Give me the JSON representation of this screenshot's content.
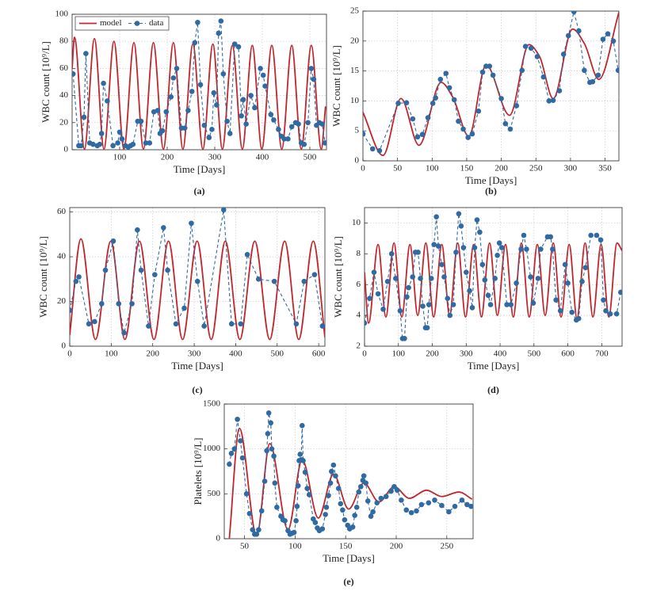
{
  "chart_data": [
    {
      "type": "line",
      "panel": "(a)",
      "xlabel": "Time [Days]",
      "ylabel": "WBC count [10⁹/L]",
      "grid": true,
      "legend": "upper left",
      "xlim": [
        0,
        535
      ],
      "xticks": [
        100,
        200,
        300,
        400,
        500
      ],
      "ylim": [
        0,
        100
      ],
      "yticks": [
        0,
        20,
        40,
        60,
        80,
        100
      ],
      "series": [
        {
          "name": "model",
          "color": "#c0272d",
          "linestyle": "solid",
          "x": [
            0,
            5,
            26,
            47,
            67,
            88,
            109,
            130,
            150,
            171,
            192,
            213,
            233,
            254,
            275,
            296,
            316,
            337,
            358,
            379,
            399,
            420,
            441,
            462,
            482,
            503,
            524,
            533
          ],
          "values": [
            60,
            83,
            0.5,
            82,
            0.5,
            80,
            0.5,
            79,
            0.5,
            79,
            0.5,
            79,
            0.5,
            78,
            0.5,
            78,
            0.5,
            77,
            0.5,
            77,
            0.5,
            77,
            0.5,
            77,
            0.5,
            77,
            0.5,
            32
          ]
        },
        {
          "name": "data",
          "color": "#2f6aa3",
          "linestyle": "dashed",
          "marker": "circle",
          "x": [
            2,
            14,
            19,
            25,
            29,
            37,
            44,
            53,
            58,
            62,
            66,
            74,
            86,
            96,
            100,
            105,
            112,
            118,
            123,
            128,
            138,
            145,
            155,
            163,
            172,
            180,
            185,
            190,
            198,
            208,
            213,
            220,
            230,
            237,
            244,
            252,
            258,
            264,
            270,
            278,
            288,
            294,
            298,
            304,
            308,
            313,
            318,
            326,
            332,
            342,
            350,
            356,
            360,
            366,
            376,
            384,
            396,
            402,
            406,
            418,
            424,
            434,
            440,
            446,
            454,
            462,
            470,
            476,
            482,
            488,
            496,
            503,
            508,
            514,
            520,
            526,
            532
          ],
          "values": [
            56,
            3,
            3,
            24,
            71,
            5,
            4,
            3,
            4,
            12,
            49,
            36,
            3,
            5,
            13,
            8,
            3,
            2,
            3,
            4,
            21,
            21,
            5,
            5,
            28,
            29,
            12,
            14,
            28,
            39,
            53,
            60,
            16,
            16,
            29,
            43,
            79,
            94,
            48,
            18,
            9,
            15,
            42,
            33,
            86,
            95,
            56,
            21,
            12,
            78,
            76,
            25,
            37,
            19,
            40,
            31,
            60,
            55,
            47,
            26,
            22,
            15,
            10,
            8,
            8,
            17,
            20,
            19,
            5,
            4,
            20,
            60,
            52,
            18,
            20,
            19,
            5
          ]
        }
      ]
    },
    {
      "type": "line",
      "panel": "(b)",
      "xlabel": "Time [Days]",
      "ylabel": "WBC count [10⁹/L]",
      "grid": true,
      "xlim": [
        0,
        370
      ],
      "xticks": [
        0,
        50,
        100,
        150,
        200,
        250,
        300,
        350
      ],
      "ylim": [
        0,
        25
      ],
      "yticks": [
        0,
        5,
        10,
        15,
        20,
        25
      ],
      "series": [
        {
          "color": "#c0272d",
          "linestyle": "solid",
          "x": [
            0,
            29,
            55,
            81,
            113,
            130,
            153,
            178,
            212,
            240,
            255,
            275,
            303,
            320,
            341,
            370
          ],
          "values": [
            8.1,
            0.9,
            10.4,
            2.6,
            13.1,
            10.6,
            4.1,
            16,
            7.6,
            19.4,
            17.5,
            10.4,
            22,
            19.6,
            13.6,
            24.8
          ]
        },
        {
          "color": "#2f6aa3",
          "linestyle": "dashed",
          "marker": "circle",
          "x": [
            0,
            14,
            24,
            51,
            63,
            72,
            79,
            86,
            94,
            101,
            105,
            112,
            120,
            125,
            132,
            138,
            145,
            152,
            158,
            167,
            173,
            178,
            183,
            188,
            200,
            206,
            213,
            222,
            230,
            235,
            243,
            252,
            261,
            269,
            275,
            284,
            290,
            297,
            305,
            312,
            320,
            328,
            332,
            340,
            347,
            354,
            362,
            369
          ],
          "values": [
            4.5,
            2,
            1.7,
            9.6,
            9.7,
            7,
            4,
            4.4,
            7.2,
            9.6,
            10.5,
            13.6,
            14.6,
            12.2,
            10.2,
            6.6,
            5.3,
            3.9,
            4.5,
            8.3,
            14.8,
            15.8,
            15.8,
            14.3,
            10.4,
            6.2,
            5.3,
            9.2,
            15.1,
            19.1,
            18.8,
            17.4,
            14,
            10,
            10.1,
            11.7,
            17.8,
            20.9,
            24.9,
            21.7,
            15.1,
            13.1,
            13.2,
            14.3,
            20.3,
            21.2,
            20,
            15.1
          ]
        }
      ]
    },
    {
      "type": "line",
      "panel": "(c)",
      "xlabel": "Time [Days]",
      "ylabel": "WBC count [10⁹/L]",
      "grid": true,
      "xlim": [
        0,
        615
      ],
      "xticks": [
        0,
        100,
        200,
        300,
        400,
        500,
        600
      ],
      "ylim": [
        0,
        62
      ],
      "yticks": [
        0,
        20,
        40,
        60
      ],
      "series": [
        {
          "color": "#c0272d",
          "linestyle": "solid",
          "x": [
            0,
            27,
            62,
            99,
            133,
            168,
            203,
            238,
            272,
            307,
            341,
            375,
            410,
            446,
            482,
            518,
            552,
            587,
            615
          ],
          "values": [
            5,
            48,
            3,
            47,
            3,
            47,
            3,
            47,
            3,
            47,
            3,
            47,
            3,
            47,
            3,
            47,
            3,
            47,
            4
          ]
        },
        {
          "color": "#2f6aa3",
          "linestyle": "dashed",
          "marker": "circle",
          "x": [
            0,
            15,
            22,
            46,
            60,
            77,
            86,
            105,
            118,
            131,
            150,
            163,
            172,
            190,
            205,
            226,
            236,
            256,
            276,
            293,
            308,
            324,
            371,
            390,
            412,
            428,
            455,
            493,
            546,
            565,
            590,
            609
          ],
          "values": [
            16,
            29,
            31,
            10,
            11,
            19,
            34,
            47,
            19,
            6,
            19,
            52,
            34,
            9,
            32,
            53,
            34,
            10,
            17,
            55,
            29,
            9,
            61,
            10,
            10,
            41,
            30,
            29,
            10,
            29,
            32,
            9
          ]
        }
      ]
    },
    {
      "type": "line",
      "panel": "(d)",
      "xlabel": "Time [Days]",
      "ylabel": "WBC count [10⁹/L]",
      "grid": true,
      "xlim": [
        0,
        760
      ],
      "xticks": [
        0,
        100,
        200,
        300,
        400,
        500,
        600,
        700
      ],
      "ylim": [
        2,
        11
      ],
      "yticks": [
        2,
        4,
        6,
        8,
        10
      ],
      "series": [
        {
          "color": "#c0272d",
          "linestyle": "solid",
          "x": [
            0,
            12,
            40,
            63,
            87,
            110,
            134,
            157,
            181,
            204,
            228,
            251,
            275,
            298,
            322,
            345,
            369,
            392,
            416,
            439,
            463,
            486,
            510,
            533,
            557,
            580,
            604,
            627,
            651,
            674,
            698,
            721,
            745,
            760
          ],
          "values": [
            6.8,
            3.5,
            8.6,
            3.9,
            8.7,
            3.9,
            8.6,
            4,
            8.7,
            3.9,
            8.6,
            4,
            8.7,
            3.9,
            8.6,
            3.9,
            8.7,
            4,
            8.6,
            3.9,
            8.7,
            3.9,
            8.6,
            4,
            8.7,
            3.9,
            8.6,
            3.8,
            8.7,
            3.9,
            8.6,
            3.9,
            8.7,
            8.2
          ]
        },
        {
          "color": "#2f6aa3",
          "linestyle": "dashed",
          "marker": "circle",
          "x": [
            0,
            15,
            28,
            40,
            55,
            68,
            80,
            92,
            105,
            112,
            118,
            125,
            130,
            142,
            150,
            158,
            165,
            172,
            180,
            185,
            190,
            197,
            205,
            212,
            218,
            228,
            235,
            245,
            252,
            262,
            270,
            278,
            285,
            292,
            300,
            310,
            318,
            325,
            332,
            340,
            348,
            355,
            365,
            372,
            385,
            392,
            398,
            405,
            420,
            432,
            448,
            462,
            470,
            478,
            490,
            498,
            512,
            520,
            540,
            549,
            555,
            565,
            578,
            592,
            600,
            612,
            625,
            632,
            642,
            652,
            668,
            685,
            697,
            705,
            712,
            725,
            744,
            756
          ],
          "values": [
            3.5,
            5.1,
            6.8,
            5.4,
            4.4,
            6.2,
            8,
            6.4,
            4.3,
            2.5,
            2.5,
            5.2,
            5.8,
            6.5,
            8.1,
            8.1,
            6.4,
            4.6,
            3.2,
            3.2,
            4.7,
            6.4,
            8.6,
            10.4,
            8.5,
            7.3,
            6.5,
            5.1,
            4,
            4.7,
            8.1,
            10.6,
            9.8,
            8.4,
            6.8,
            5.6,
            4.5,
            8.4,
            10.2,
            9.4,
            7.3,
            6.3,
            5.3,
            4.7,
            6.4,
            7.9,
            8.7,
            8.4,
            4.7,
            4.7,
            6.1,
            8.3,
            9.2,
            8.3,
            6.5,
            4.8,
            6.4,
            8.3,
            9.1,
            9.1,
            8.3,
            5,
            4.3,
            7.3,
            6.1,
            4.2,
            3.7,
            3.8,
            6.2,
            7.1,
            9.2,
            9.2,
            8.9,
            5,
            4.3,
            4.1,
            4.1,
            5.5
          ]
        }
      ]
    },
    {
      "type": "line",
      "panel": "(e)",
      "xlabel": "Time [Days]",
      "ylabel": "Platelets [10⁹/L]",
      "grid": true,
      "xlim": [
        30,
        276
      ],
      "xticks": [
        50,
        100,
        150,
        200,
        250
      ],
      "ylim": [
        0,
        1500
      ],
      "yticks": [
        0,
        500,
        1000,
        1500
      ],
      "series": [
        {
          "color": "#c0272d",
          "linestyle": "solid",
          "x": [
            35,
            45,
            62,
            75,
            93,
            107,
            123,
            138,
            153,
            168,
            183,
            198,
            213,
            230,
            245,
            262,
            275
          ],
          "values": [
            0,
            1230,
            30,
            1060,
            100,
            880,
            230,
            720,
            330,
            620,
            410,
            580,
            450,
            540,
            470,
            520,
            440
          ]
        },
        {
          "color": "#2f6aa3",
          "linestyle": "dashed",
          "marker": "circle",
          "x": [
            35,
            37,
            40,
            43,
            46,
            48,
            52,
            55,
            58,
            60,
            62,
            64,
            67,
            70,
            72,
            73,
            74,
            76,
            77,
            79,
            80,
            82,
            86,
            88,
            90,
            93,
            95,
            97,
            99,
            101,
            102,
            103,
            104,
            105,
            106,
            107,
            108,
            110,
            112,
            114,
            118,
            120,
            122,
            124,
            127,
            130,
            131,
            133,
            135,
            136,
            138,
            140,
            143,
            145,
            147,
            149,
            152,
            154,
            157,
            159,
            161,
            163,
            165,
            167,
            168,
            170,
            172,
            175,
            177,
            181,
            185,
            190,
            195,
            198,
            201,
            205,
            210,
            215,
            220,
            225,
            232,
            238,
            245,
            252,
            258,
            265,
            270,
            274
          ],
          "values": [
            830,
            950,
            1000,
            1330,
            1090,
            900,
            500,
            280,
            100,
            50,
            50,
            100,
            310,
            640,
            980,
            1170,
            1400,
            1290,
            1000,
            920,
            620,
            350,
            250,
            210,
            200,
            90,
            50,
            60,
            70,
            200,
            360,
            590,
            870,
            940,
            880,
            1260,
            870,
            740,
            560,
            490,
            220,
            180,
            120,
            90,
            110,
            270,
            350,
            480,
            620,
            750,
            820,
            700,
            560,
            390,
            320,
            210,
            150,
            110,
            130,
            260,
            350,
            520,
            580,
            650,
            700,
            620,
            420,
            250,
            300,
            400,
            450,
            470,
            530,
            580,
            540,
            430,
            320,
            290,
            310,
            380,
            400,
            430,
            370,
            300,
            360,
            430,
            380,
            360
          ]
        }
      ]
    }
  ]
}
